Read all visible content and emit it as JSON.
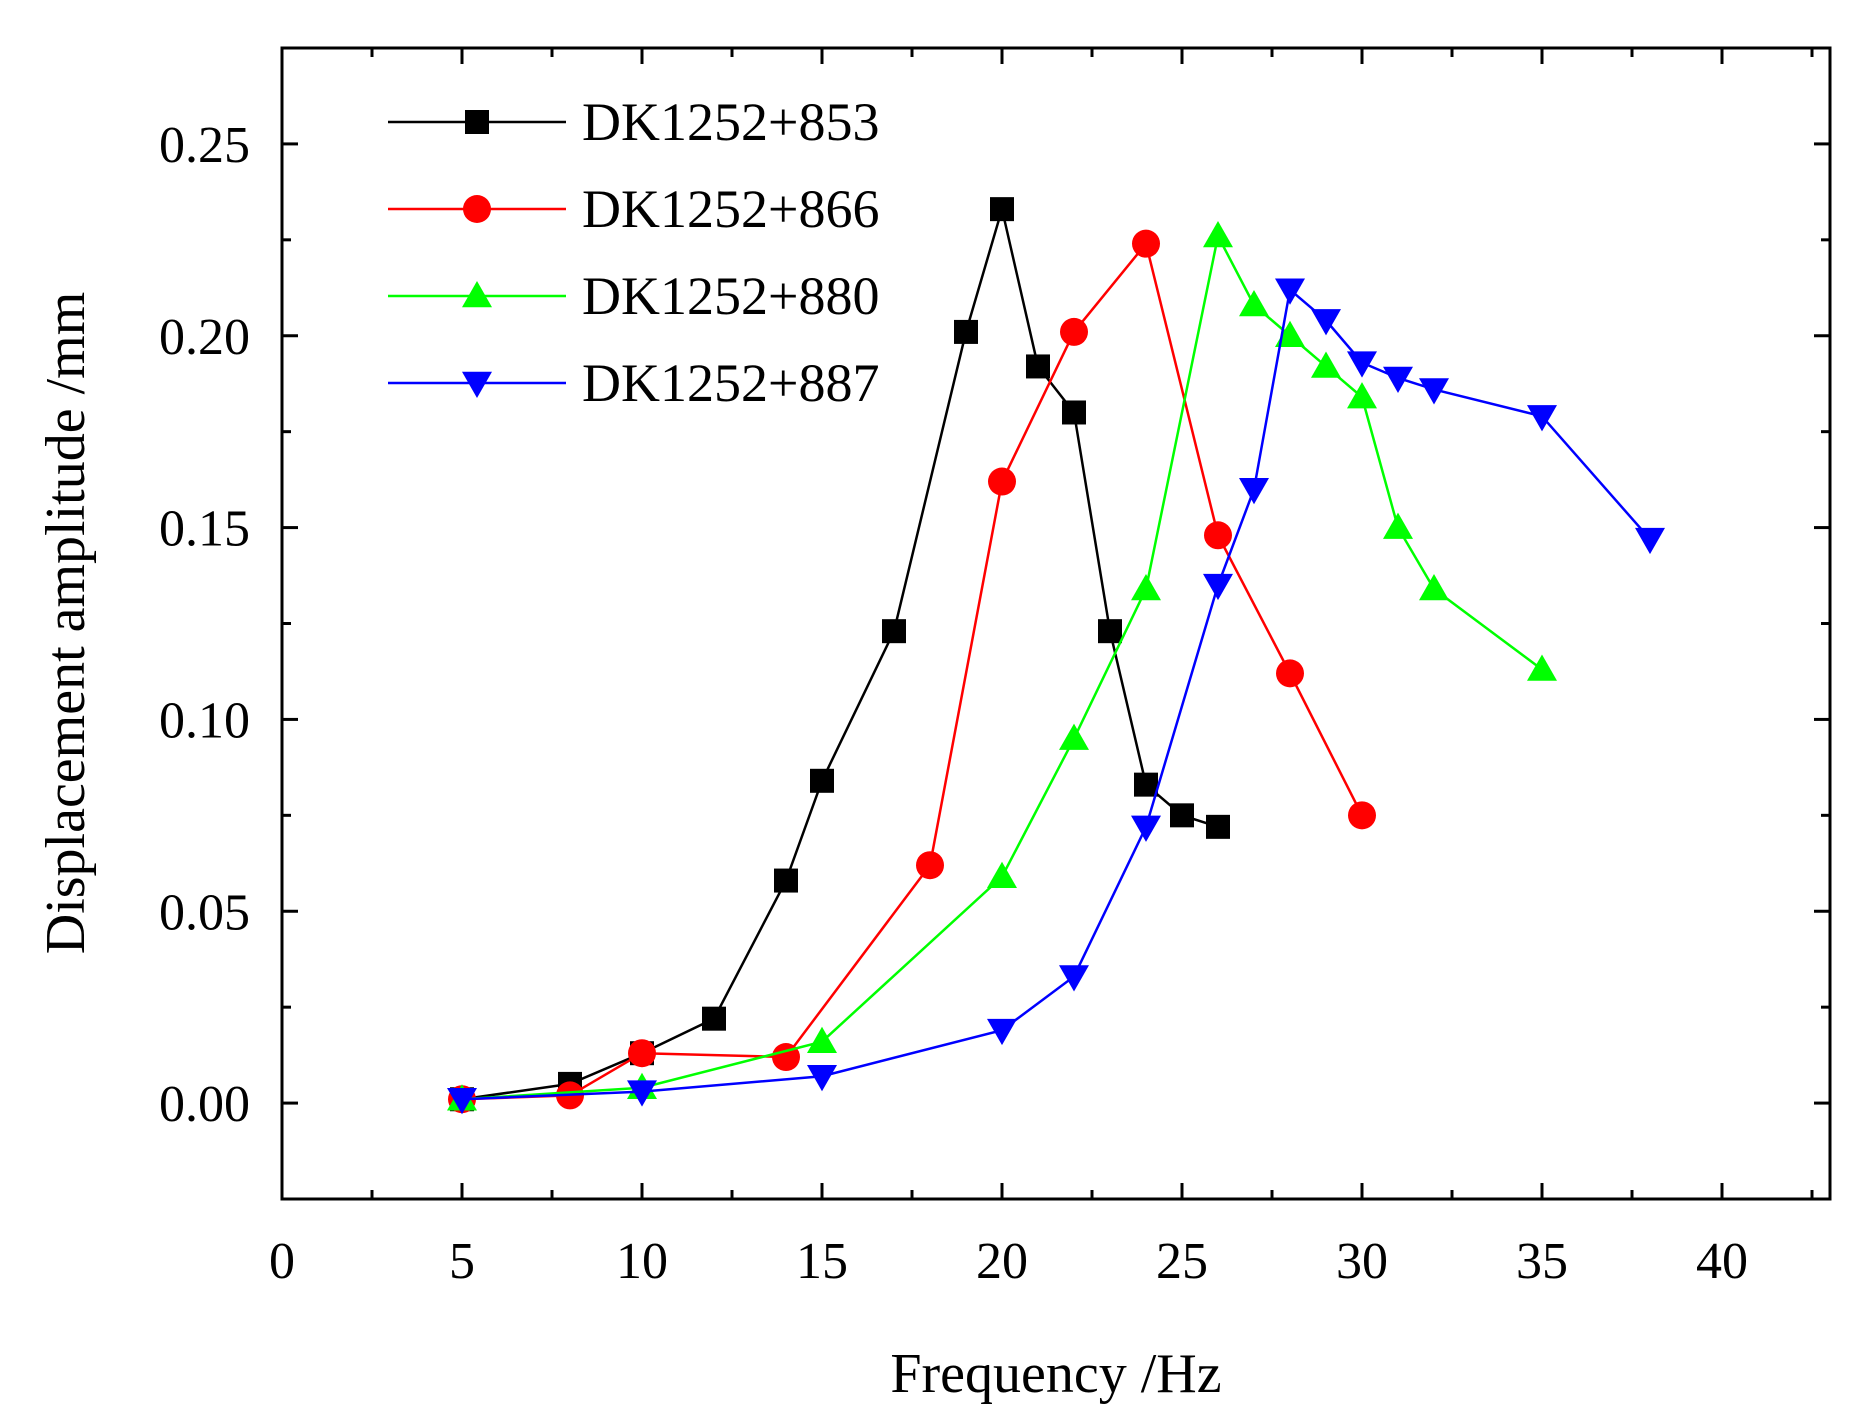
{
  "chart_data": {
    "type": "line",
    "title": "",
    "xlabel": "Frequency /Hz",
    "ylabel": "Displacement amplitude /mm",
    "xlim": [
      0,
      43
    ],
    "ylim": [
      -0.025,
      0.275
    ],
    "xticks": [
      0,
      5,
      10,
      15,
      20,
      25,
      30,
      35,
      40
    ],
    "xtick_labels": [
      "0",
      "5",
      "10",
      "15",
      "20",
      "25",
      "30",
      "35",
      "40"
    ],
    "yticks": [
      0,
      0.05,
      0.1,
      0.15,
      0.2,
      0.25
    ],
    "ytick_labels": [
      "0.00",
      "0.05",
      "0.10",
      "0.15",
      "0.20",
      "0.25"
    ],
    "legend_position": "top-left",
    "grid": false,
    "series": [
      {
        "name": "DK1252+853",
        "color": "#000000",
        "marker": "square",
        "x": [
          5,
          8,
          10,
          12,
          14,
          15,
          17,
          19,
          20,
          21,
          22,
          23,
          24,
          25,
          26
        ],
        "y": [
          0.001,
          0.005,
          0.013,
          0.022,
          0.058,
          0.084,
          0.123,
          0.201,
          0.233,
          0.192,
          0.18,
          0.123,
          0.083,
          0.075,
          0.072
        ]
      },
      {
        "name": "DK1252+866",
        "color": "#ff0000",
        "marker": "circle",
        "x": [
          5,
          8,
          10,
          14,
          18,
          20,
          22,
          24,
          26,
          28,
          30
        ],
        "y": [
          0.001,
          0.002,
          0.013,
          0.012,
          0.062,
          0.162,
          0.201,
          0.224,
          0.148,
          0.112,
          0.075
        ]
      },
      {
        "name": "DK1252+880",
        "color": "#00ff00",
        "marker": "triangle-up",
        "x": [
          5,
          10,
          15,
          20,
          22,
          24,
          26,
          27,
          28,
          29,
          30,
          31,
          32,
          35
        ],
        "y": [
          0.001,
          0.004,
          0.016,
          0.059,
          0.095,
          0.134,
          0.226,
          0.208,
          0.2,
          0.192,
          0.184,
          0.15,
          0.134,
          0.113
        ]
      },
      {
        "name": "DK1252+887",
        "color": "#0000ff",
        "marker": "triangle-down",
        "x": [
          5,
          10,
          15,
          20,
          22,
          24,
          26,
          27,
          28,
          29,
          30,
          31,
          32,
          35,
          38
        ],
        "y": [
          0.001,
          0.003,
          0.007,
          0.019,
          0.033,
          0.072,
          0.135,
          0.16,
          0.212,
          0.204,
          0.193,
          0.189,
          0.186,
          0.179,
          0.147
        ]
      }
    ]
  }
}
